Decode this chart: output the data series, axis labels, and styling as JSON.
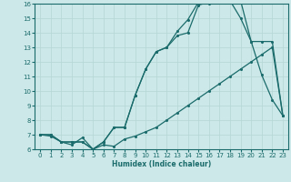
{
  "xlabel": "Humidex (Indice chaleur)",
  "bg_color": "#cde8e8",
  "line_color": "#1a6b6b",
  "grid_color": "#b8d8d8",
  "xlim": [
    -0.5,
    23.5
  ],
  "ylim": [
    6,
    16
  ],
  "xticks": [
    0,
    1,
    2,
    3,
    4,
    5,
    6,
    7,
    8,
    9,
    10,
    11,
    12,
    13,
    14,
    15,
    16,
    17,
    18,
    19,
    20,
    21,
    22,
    23
  ],
  "yticks": [
    6,
    7,
    8,
    9,
    10,
    11,
    12,
    13,
    14,
    15,
    16
  ],
  "line1_x": [
    0,
    1,
    2,
    3,
    4,
    5,
    6,
    7,
    8,
    9,
    10,
    11,
    12,
    13,
    14,
    15,
    16,
    17,
    18,
    19,
    20,
    21,
    22,
    23
  ],
  "line1_y": [
    7.0,
    6.9,
    6.5,
    6.3,
    6.8,
    6.0,
    6.3,
    6.2,
    6.7,
    6.9,
    7.2,
    7.5,
    8.0,
    8.5,
    9.0,
    9.5,
    10.0,
    10.5,
    11.0,
    11.5,
    12.0,
    12.5,
    13.0,
    8.3
  ],
  "line2_x": [
    0,
    1,
    2,
    3,
    4,
    5,
    6,
    7,
    8,
    9,
    10,
    11,
    12,
    13,
    14,
    15,
    16,
    17,
    18,
    19,
    20,
    21,
    22,
    23
  ],
  "line2_y": [
    7.0,
    7.0,
    6.5,
    6.5,
    6.5,
    6.0,
    6.5,
    7.5,
    7.5,
    9.7,
    11.5,
    12.7,
    13.0,
    13.8,
    14.0,
    15.9,
    16.1,
    16.1,
    16.2,
    15.0,
    13.4,
    11.1,
    9.4,
    8.3
  ],
  "line3_x": [
    0,
    1,
    2,
    3,
    4,
    5,
    6,
    7,
    8,
    9,
    10,
    11,
    12,
    13,
    14,
    15,
    16,
    17,
    18,
    19,
    20,
    21,
    22,
    23
  ],
  "line3_y": [
    7.0,
    7.0,
    6.5,
    6.5,
    6.5,
    6.0,
    6.5,
    7.5,
    7.5,
    9.7,
    11.5,
    12.7,
    13.0,
    14.1,
    14.9,
    16.1,
    16.0,
    16.2,
    16.2,
    16.2,
    13.4,
    13.4,
    13.4,
    8.3
  ]
}
